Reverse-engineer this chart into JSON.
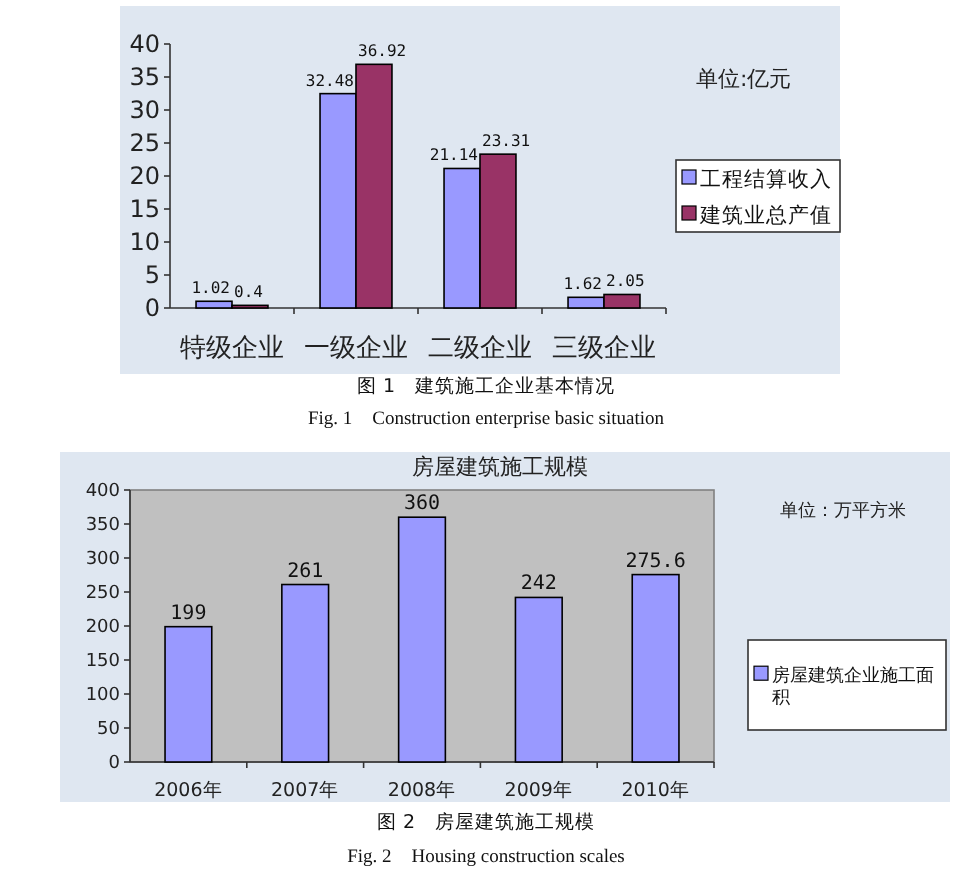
{
  "chart_data": [
    {
      "type": "bar",
      "categories": [
        "特级企业",
        "一级企业",
        "二级企业",
        "三级企业"
      ],
      "series": [
        {
          "name": "工程结算收入",
          "color": "#9999ff",
          "values": [
            1.02,
            32.48,
            21.14,
            1.62
          ]
        },
        {
          "name": "建筑业总产值",
          "color": "#993366",
          "values": [
            0.4,
            36.92,
            23.31,
            2.05
          ]
        }
      ],
      "ylim": [
        0,
        40
      ],
      "yticks": [
        0,
        5,
        10,
        15,
        20,
        25,
        30,
        35,
        40
      ],
      "data_labels": true,
      "legend": "right",
      "annotations": [
        "单位:亿元",
        "图 1　建筑施工企业基本情况",
        "Fig. 1　Construction enterprise basic situation"
      ]
    },
    {
      "type": "bar",
      "title": "房屋建筑施工规模",
      "categories": [
        "2006年",
        "2007年",
        "2008年",
        "2009年",
        "2010年"
      ],
      "series": [
        {
          "name": "房屋建筑企业施工面积",
          "color": "#9999ff",
          "values": [
            199,
            261,
            360,
            242,
            275.6
          ]
        }
      ],
      "ylim": [
        0,
        400
      ],
      "yticks": [
        0,
        50,
        100,
        150,
        200,
        250,
        300,
        350,
        400
      ],
      "data_labels": true,
      "legend": "right",
      "annotations": [
        "单位：万平方米",
        "图 2　房屋建筑施工规模",
        "Fig. 2　Housing construction scales"
      ]
    }
  ]
}
